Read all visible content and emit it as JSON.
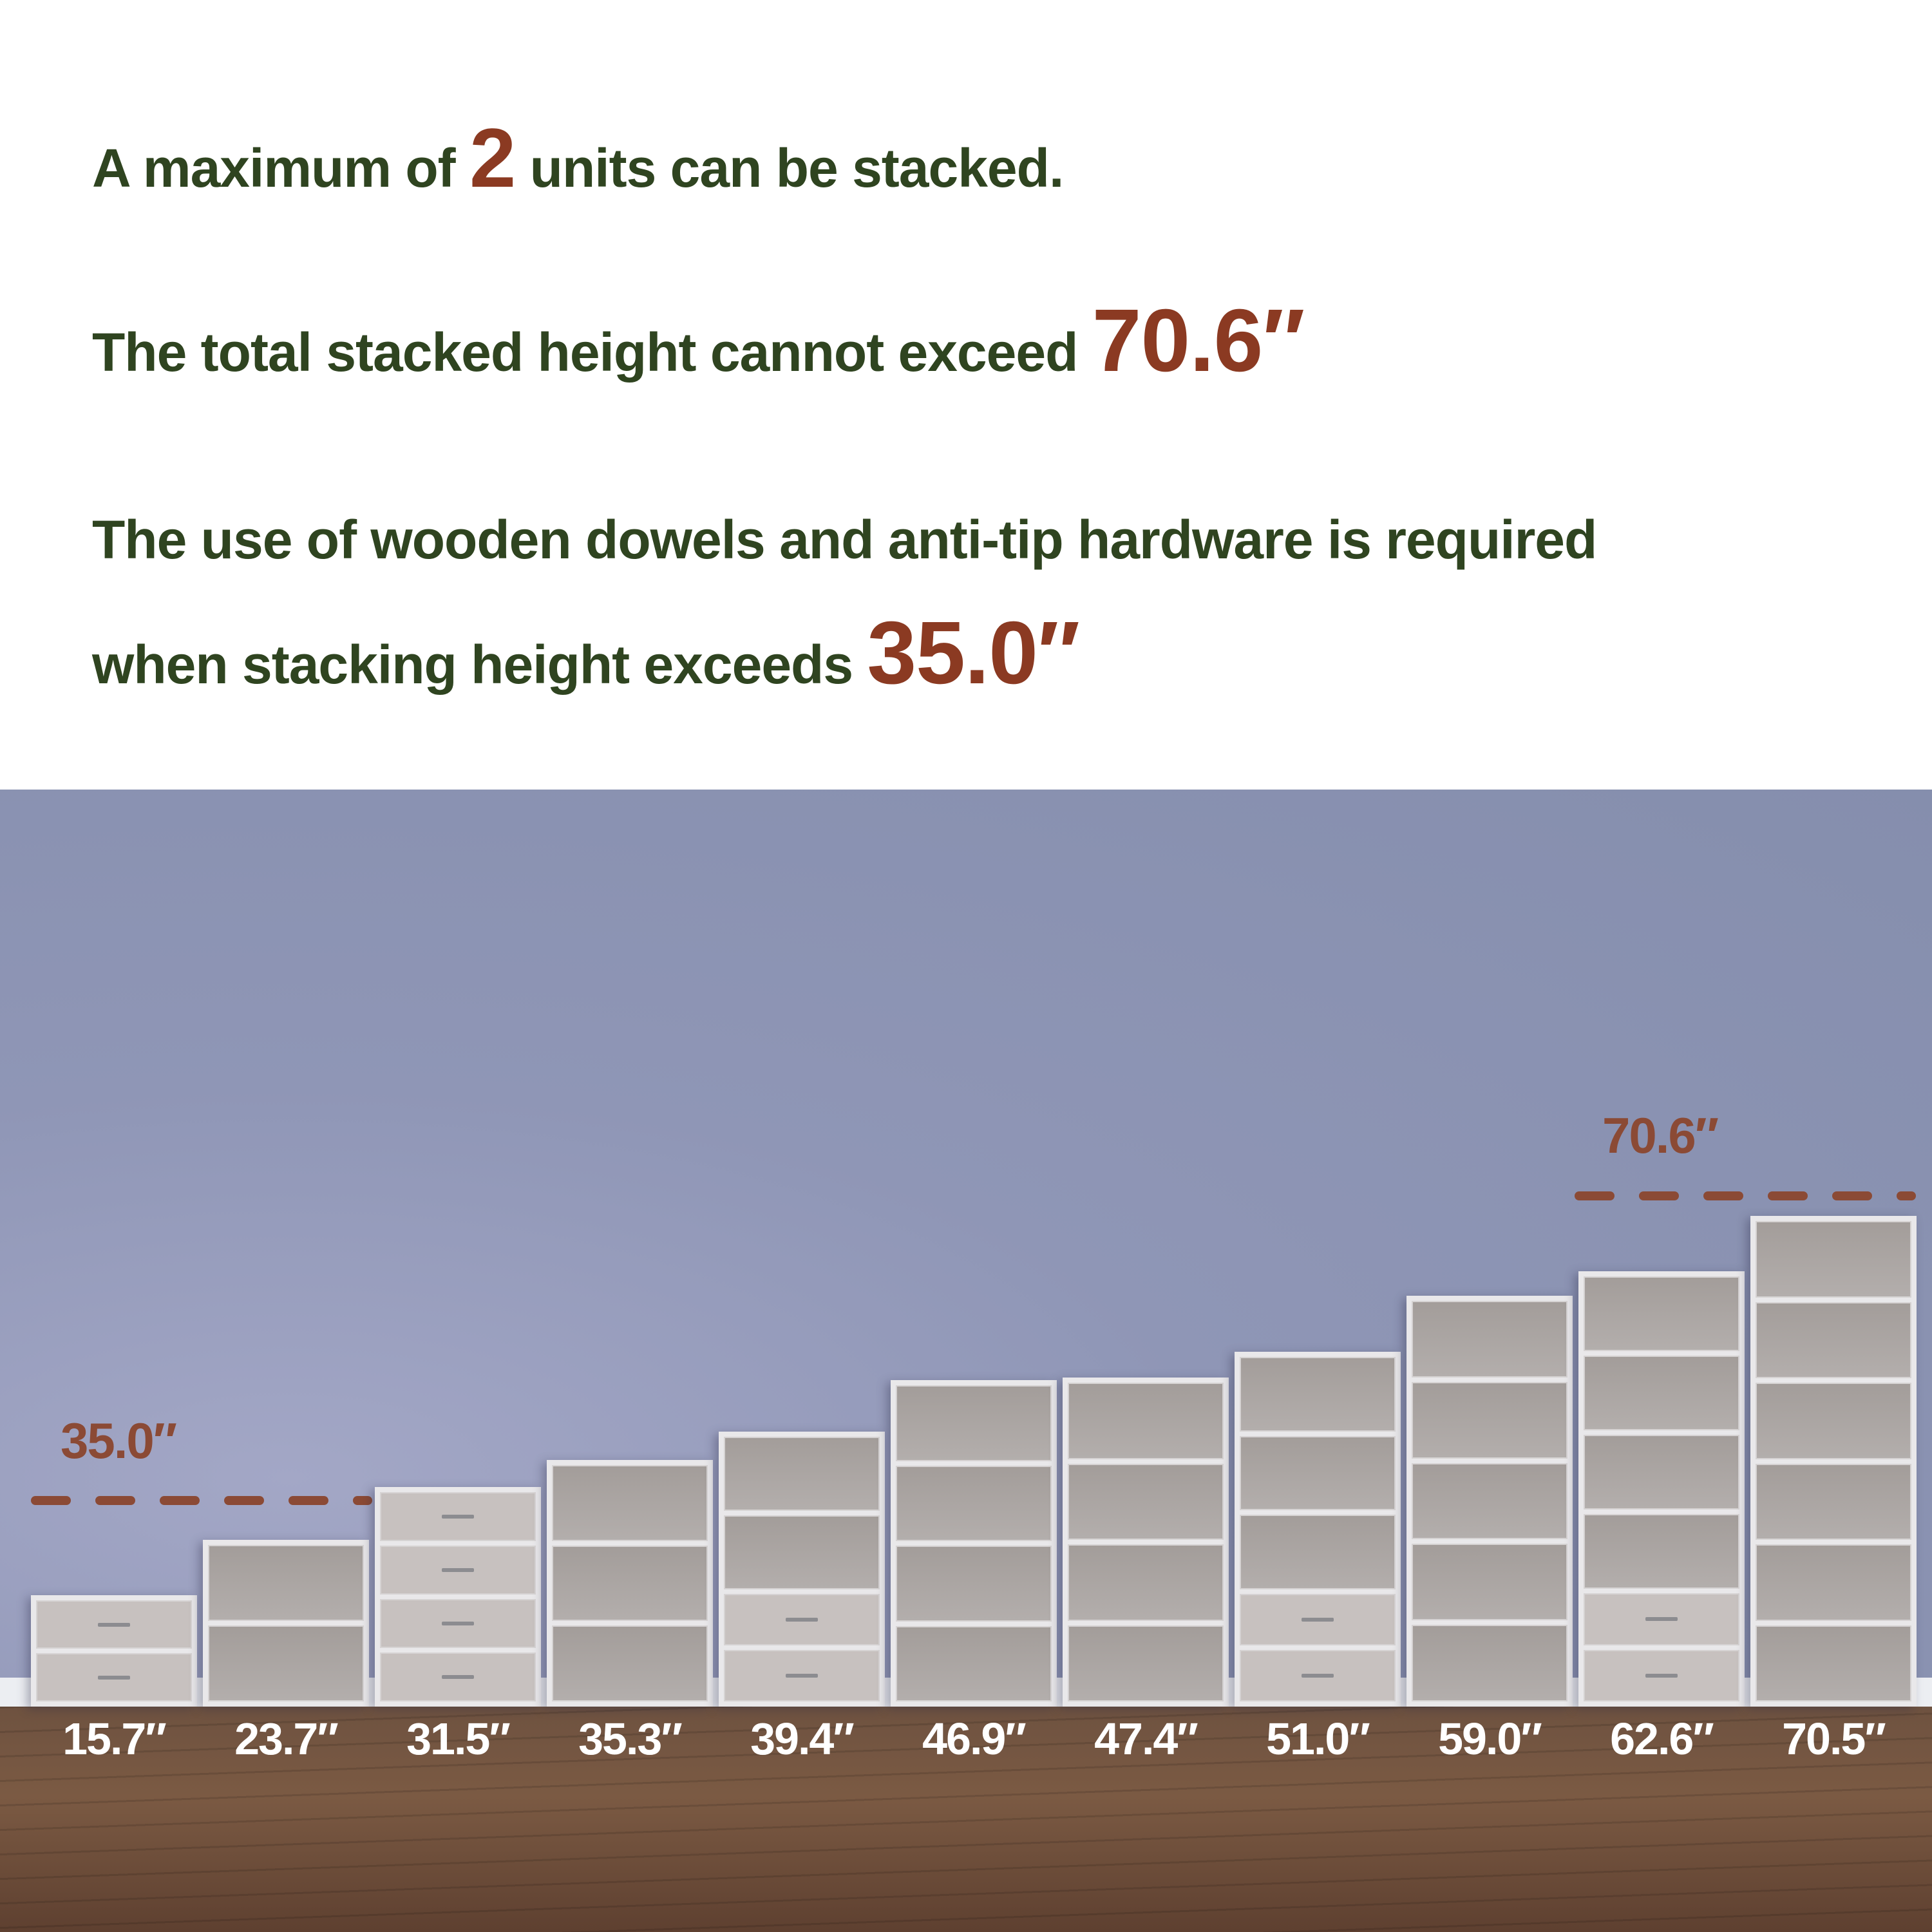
{
  "headline": {
    "line1": {
      "before": "A maximum of ",
      "highlight": "2",
      "after": " units can be stacked."
    },
    "line2": {
      "before": "The total stacked height cannot exceed ",
      "highlight": "70.6″"
    },
    "line3": {
      "text": "The use of wooden dowels and anti-tip hardware is required"
    },
    "line4": {
      "before": "when stacking height exceeds ",
      "highlight": "35.0″"
    }
  },
  "markers": {
    "low": "35.0″",
    "high": "70.6″"
  },
  "units": [
    {
      "label": "15.7″",
      "compartments": [
        "drawer",
        "drawer"
      ]
    },
    {
      "label": "23.7″",
      "compartments": [
        "open",
        "open"
      ]
    },
    {
      "label": "31.5″",
      "compartments": [
        "drawer",
        "drawer",
        "drawer",
        "drawer"
      ]
    },
    {
      "label": "35.3″",
      "compartments": [
        "open",
        "open",
        "open"
      ]
    },
    {
      "label": "39.4″",
      "compartments": [
        "open",
        "open",
        "drawer",
        "drawer"
      ]
    },
    {
      "label": "46.9″",
      "compartments": [
        "open",
        "open",
        "open",
        "open"
      ]
    },
    {
      "label": "47.4″",
      "compartments": [
        "open",
        "open",
        "open",
        "open"
      ]
    },
    {
      "label": "51.0″",
      "compartments": [
        "open",
        "open",
        "open",
        "drawer",
        "drawer"
      ]
    },
    {
      "label": "59.0″",
      "compartments": [
        "open",
        "open",
        "open",
        "open",
        "open"
      ]
    },
    {
      "label": "62.6″",
      "compartments": [
        "open",
        "open",
        "open",
        "open",
        "drawer",
        "drawer"
      ]
    },
    {
      "label": "70.5″",
      "compartments": [
        "open",
        "open",
        "open",
        "open",
        "open",
        "open"
      ]
    }
  ],
  "colors": {
    "text": "#2f4420",
    "highlight": "#8b3a22",
    "marker": "#8b4a35",
    "wall": "#8f96b6",
    "floor": "#6e5240"
  }
}
